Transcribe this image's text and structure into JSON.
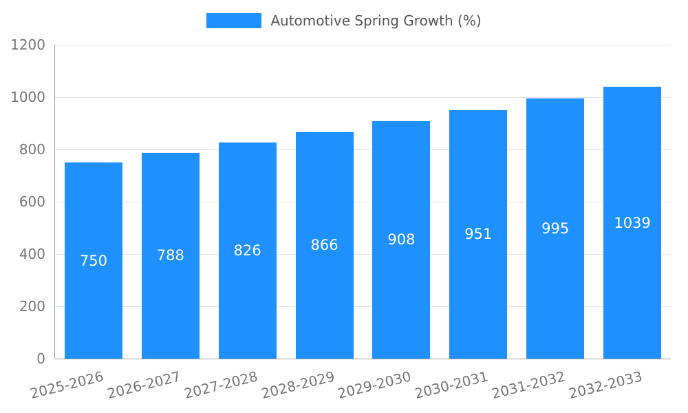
{
  "chart_data": {
    "type": "bar",
    "title": "Automotive Spring Growth (%)",
    "categories": [
      "2025-2026",
      "2026-2027",
      "2027-2028",
      "2028-2029",
      "2029-2030",
      "2030-2031",
      "2031-2032",
      "2032-2033"
    ],
    "values": [
      750,
      788,
      826,
      866,
      908,
      951,
      995,
      1039
    ],
    "xlabel": "",
    "ylabel": "",
    "ylim": [
      0,
      1200
    ],
    "yticks": [
      0,
      200,
      400,
      600,
      800,
      1000,
      1200
    ],
    "grid": true,
    "legend_position": "top",
    "bar_color": "#1e90ff",
    "value_label_color": "#ffffff",
    "grid_color": "#e0e0e0",
    "axis_color": "#9e9e9e",
    "tick_text_color": "#757575"
  }
}
